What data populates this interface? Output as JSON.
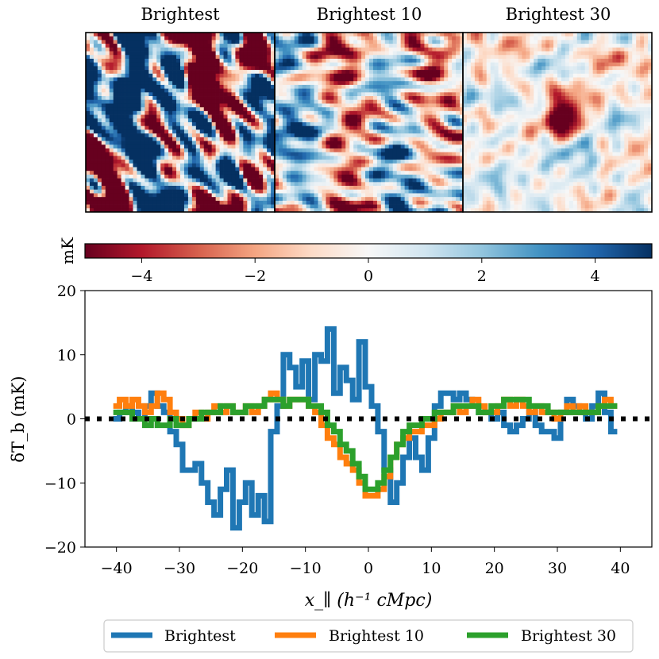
{
  "panels": {
    "titles": [
      "Brightest",
      "Brightest 10",
      "Brightest 30"
    ]
  },
  "colorbar": {
    "label": "mK",
    "range": [
      -5,
      5
    ],
    "ticks": [
      -4,
      -2,
      0,
      2,
      4
    ],
    "tick_labels": [
      "−4",
      "−2",
      "0",
      "2",
      "4"
    ],
    "colormap": "RdBu",
    "colors": [
      "#67001f",
      "#b2182b",
      "#d6604d",
      "#f4a582",
      "#fddbc7",
      "#f7f7f7",
      "#d1e5f0",
      "#92c5de",
      "#4393c3",
      "#2166ac",
      "#053061"
    ]
  },
  "chart_data": {
    "type": "line",
    "drawstyle": "steps",
    "ylabel": "δT_b (mK)",
    "xlabel": "x_∥ (h⁻¹ cMpc)",
    "xlim": [
      -45,
      45
    ],
    "ylim": [
      -20,
      20
    ],
    "xticks": [
      -40,
      -30,
      -20,
      -10,
      0,
      10,
      20,
      30,
      40
    ],
    "xtick_labels": [
      "−40",
      "−30",
      "−20",
      "−10",
      "0",
      "10",
      "20",
      "30",
      "40"
    ],
    "yticks": [
      -20,
      -10,
      0,
      10,
      20
    ],
    "ytick_labels": [
      "−20",
      "−10",
      "0",
      "10",
      "20"
    ],
    "reference_line": {
      "y": 0,
      "style": "dotted",
      "color": "#000000"
    },
    "series": [
      {
        "name": "Brightest",
        "color": "#1f77b4",
        "points": [
          [
            -40,
            0
          ],
          [
            -39,
            1
          ],
          [
            -38,
            2
          ],
          [
            -37,
            1
          ],
          [
            -36,
            0
          ],
          [
            -35,
            2
          ],
          [
            -34,
            4
          ],
          [
            -33,
            2
          ],
          [
            -32,
            1
          ],
          [
            -31,
            -2
          ],
          [
            -30,
            -4
          ],
          [
            -29,
            -8
          ],
          [
            -28,
            -8
          ],
          [
            -27,
            -7
          ],
          [
            -26,
            -10
          ],
          [
            -25,
            -13
          ],
          [
            -24,
            -15
          ],
          [
            -23,
            -11
          ],
          [
            -22,
            -8
          ],
          [
            -21,
            -17
          ],
          [
            -20,
            -13
          ],
          [
            -19,
            -10
          ],
          [
            -18,
            -15
          ],
          [
            -17,
            -12
          ],
          [
            -16,
            -16
          ],
          [
            -15,
            -2
          ],
          [
            -14,
            2
          ],
          [
            -13,
            10
          ],
          [
            -12,
            8
          ],
          [
            -11,
            5
          ],
          [
            -10,
            9
          ],
          [
            -9,
            3
          ],
          [
            -8,
            10
          ],
          [
            -7,
            9
          ],
          [
            -6,
            14
          ],
          [
            -5,
            4
          ],
          [
            -4,
            8
          ],
          [
            -3,
            6
          ],
          [
            -2,
            3
          ],
          [
            -1,
            12
          ],
          [
            0,
            5
          ],
          [
            1,
            2
          ],
          [
            2,
            -2
          ],
          [
            3,
            -8
          ],
          [
            4,
            -13
          ],
          [
            5,
            -10
          ],
          [
            6,
            -6
          ],
          [
            7,
            -3
          ],
          [
            8,
            -6
          ],
          [
            9,
            -8
          ],
          [
            10,
            -3
          ],
          [
            11,
            2
          ],
          [
            12,
            4
          ],
          [
            13,
            4
          ],
          [
            14,
            3
          ],
          [
            15,
            4
          ],
          [
            16,
            3
          ],
          [
            17,
            2
          ],
          [
            18,
            1
          ],
          [
            19,
            1
          ],
          [
            20,
            0
          ],
          [
            21,
            1
          ],
          [
            22,
            -1
          ],
          [
            23,
            -2
          ],
          [
            24,
            -1
          ],
          [
            25,
            0
          ],
          [
            26,
            1
          ],
          [
            27,
            -1
          ],
          [
            28,
            -2
          ],
          [
            29,
            -2
          ],
          [
            30,
            -3
          ],
          [
            31,
            1
          ],
          [
            32,
            3
          ],
          [
            33,
            2
          ],
          [
            34,
            1
          ],
          [
            35,
            0
          ],
          [
            36,
            2
          ],
          [
            37,
            4
          ],
          [
            38,
            1
          ],
          [
            39,
            -2
          ]
        ]
      },
      {
        "name": "Brightest 10",
        "color": "#ff7f0e",
        "points": [
          [
            -40,
            2
          ],
          [
            -39,
            3
          ],
          [
            -38,
            2
          ],
          [
            -37,
            3
          ],
          [
            -36,
            2
          ],
          [
            -35,
            1
          ],
          [
            -34,
            2
          ],
          [
            -33,
            4
          ],
          [
            -32,
            3
          ],
          [
            -31,
            1
          ],
          [
            -30,
            0
          ],
          [
            -29,
            -1
          ],
          [
            -28,
            0
          ],
          [
            -27,
            1
          ],
          [
            -26,
            0
          ],
          [
            -25,
            1
          ],
          [
            -24,
            2
          ],
          [
            -23,
            1
          ],
          [
            -22,
            2
          ],
          [
            -21,
            1
          ],
          [
            -20,
            1
          ],
          [
            -19,
            2
          ],
          [
            -18,
            1
          ],
          [
            -17,
            2
          ],
          [
            -16,
            3
          ],
          [
            -15,
            4
          ],
          [
            -14,
            3
          ],
          [
            -13,
            2
          ],
          [
            -12,
            3
          ],
          [
            -11,
            3
          ],
          [
            -10,
            3
          ],
          [
            -9,
            2
          ],
          [
            -8,
            1
          ],
          [
            -7,
            -1
          ],
          [
            -6,
            -3
          ],
          [
            -5,
            -4
          ],
          [
            -4,
            -6
          ],
          [
            -3,
            -7
          ],
          [
            -2,
            -8
          ],
          [
            -1,
            -10
          ],
          [
            0,
            -12
          ],
          [
            1,
            -12
          ],
          [
            2,
            -11
          ],
          [
            3,
            -9
          ],
          [
            4,
            -6
          ],
          [
            5,
            -4
          ],
          [
            6,
            -3
          ],
          [
            7,
            -2
          ],
          [
            8,
            -2
          ],
          [
            9,
            -1
          ],
          [
            10,
            -1
          ],
          [
            11,
            0
          ],
          [
            12,
            1
          ],
          [
            13,
            1
          ],
          [
            14,
            2
          ],
          [
            15,
            1
          ],
          [
            16,
            2
          ],
          [
            17,
            3
          ],
          [
            18,
            2
          ],
          [
            19,
            1
          ],
          [
            20,
            1
          ],
          [
            21,
            2
          ],
          [
            22,
            3
          ],
          [
            23,
            2
          ],
          [
            24,
            3
          ],
          [
            25,
            2
          ],
          [
            26,
            1
          ],
          [
            27,
            2
          ],
          [
            28,
            1
          ],
          [
            29,
            1
          ],
          [
            30,
            0
          ],
          [
            31,
            1
          ],
          [
            32,
            2
          ],
          [
            33,
            1
          ],
          [
            34,
            2
          ],
          [
            35,
            1
          ],
          [
            36,
            1
          ],
          [
            37,
            2
          ],
          [
            38,
            3
          ],
          [
            39,
            2
          ]
        ]
      },
      {
        "name": "Brightest 30",
        "color": "#2ca02c",
        "points": [
          [
            -40,
            1
          ],
          [
            -39,
            1
          ],
          [
            -38,
            1
          ],
          [
            -37,
            0
          ],
          [
            -36,
            0
          ],
          [
            -35,
            -1
          ],
          [
            -34,
            0
          ],
          [
            -33,
            -1
          ],
          [
            -32,
            -1
          ],
          [
            -31,
            0
          ],
          [
            -30,
            -1
          ],
          [
            -29,
            -1
          ],
          [
            -28,
            0
          ],
          [
            -27,
            0
          ],
          [
            -26,
            1
          ],
          [
            -25,
            1
          ],
          [
            -24,
            1
          ],
          [
            -23,
            2
          ],
          [
            -22,
            2
          ],
          [
            -21,
            1
          ],
          [
            -20,
            1
          ],
          [
            -19,
            2
          ],
          [
            -18,
            2
          ],
          [
            -17,
            2
          ],
          [
            -16,
            3
          ],
          [
            -15,
            3
          ],
          [
            -14,
            3
          ],
          [
            -13,
            2
          ],
          [
            -12,
            3
          ],
          [
            -11,
            3
          ],
          [
            -10,
            3
          ],
          [
            -9,
            2
          ],
          [
            -8,
            2
          ],
          [
            -7,
            1
          ],
          [
            -6,
            -1
          ],
          [
            -5,
            -2
          ],
          [
            -4,
            -4
          ],
          [
            -3,
            -5
          ],
          [
            -2,
            -7
          ],
          [
            -1,
            -9
          ],
          [
            0,
            -11
          ],
          [
            1,
            -11
          ],
          [
            2,
            -10
          ],
          [
            3,
            -8
          ],
          [
            4,
            -6
          ],
          [
            5,
            -4
          ],
          [
            6,
            -2
          ],
          [
            7,
            -1
          ],
          [
            8,
            -1
          ],
          [
            9,
            0
          ],
          [
            10,
            0
          ],
          [
            11,
            1
          ],
          [
            12,
            1
          ],
          [
            13,
            1
          ],
          [
            14,
            2
          ],
          [
            15,
            2
          ],
          [
            16,
            2
          ],
          [
            17,
            2
          ],
          [
            18,
            1
          ],
          [
            19,
            1
          ],
          [
            20,
            2
          ],
          [
            21,
            2
          ],
          [
            22,
            3
          ],
          [
            23,
            3
          ],
          [
            24,
            3
          ],
          [
            25,
            3
          ],
          [
            26,
            2
          ],
          [
            27,
            2
          ],
          [
            28,
            2
          ],
          [
            29,
            1
          ],
          [
            30,
            1
          ],
          [
            31,
            1
          ],
          [
            32,
            1
          ],
          [
            33,
            1
          ],
          [
            34,
            1
          ],
          [
            35,
            1
          ],
          [
            36,
            1
          ],
          [
            37,
            2
          ],
          [
            38,
            2
          ],
          [
            39,
            2
          ]
        ]
      }
    ]
  },
  "legend": {
    "entries": [
      "Brightest",
      "Brightest 10",
      "Brightest 30"
    ],
    "placement": "below the plot, centered"
  }
}
